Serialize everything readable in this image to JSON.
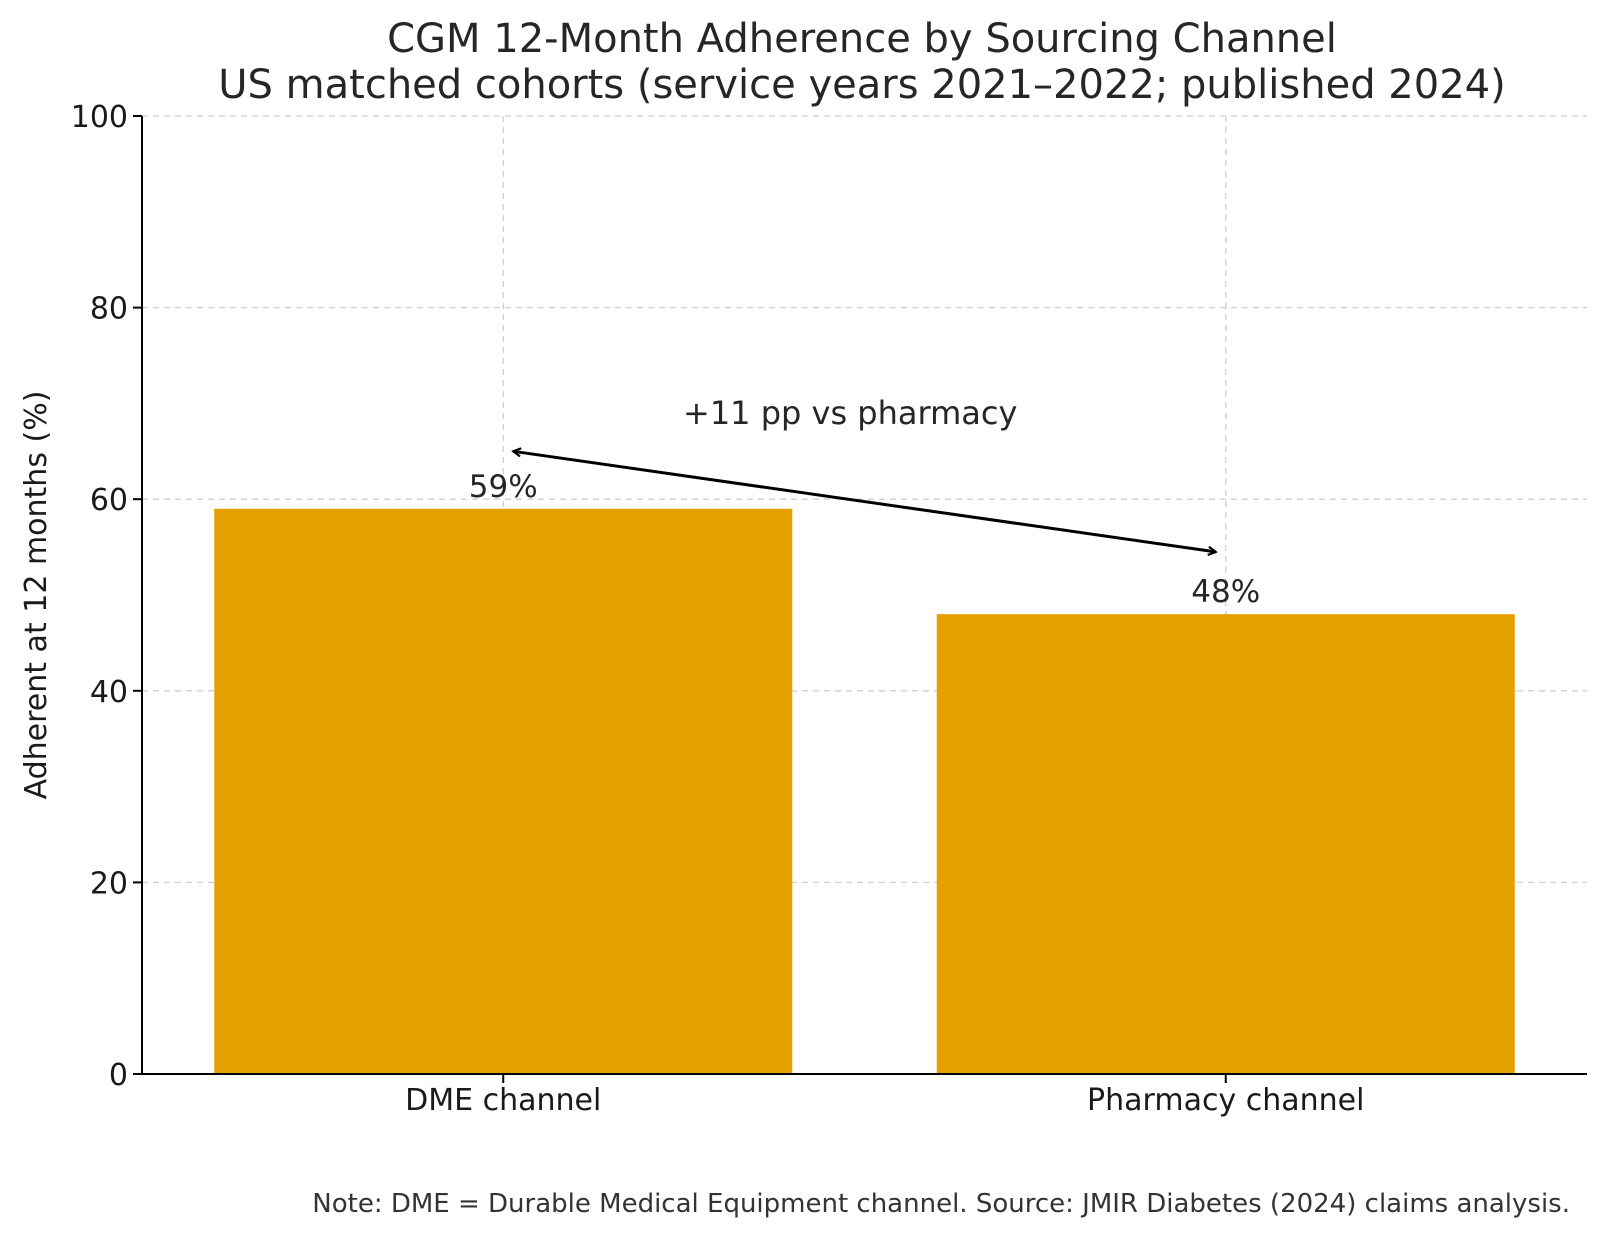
{
  "chart_data": {
    "type": "bar",
    "title": "CGM 12-Month Adherence by Sourcing Channel",
    "subtitle": "US matched cohorts (service years 2021–2022; published 2024)",
    "xlabel": "",
    "ylabel": "Adherent at 12 months (%)",
    "categories": [
      "DME channel",
      "Pharmacy channel"
    ],
    "values": [
      59,
      48
    ],
    "value_labels": [
      "59%",
      "48%"
    ],
    "ylim": [
      0,
      100
    ],
    "yticks": [
      0,
      20,
      40,
      60,
      80,
      100
    ],
    "bar_color": "#E3A000",
    "grid": true,
    "annotation": {
      "text": "+11 pp vs pharmacy",
      "arrow_from": {
        "category": "DME channel",
        "y": 65
      },
      "arrow_to": {
        "category": "Pharmacy channel",
        "y": 54.5
      }
    },
    "note": "Note: DME = Durable Medical Equipment channel. Source: JMIR Diabetes (2024) claims analysis."
  }
}
